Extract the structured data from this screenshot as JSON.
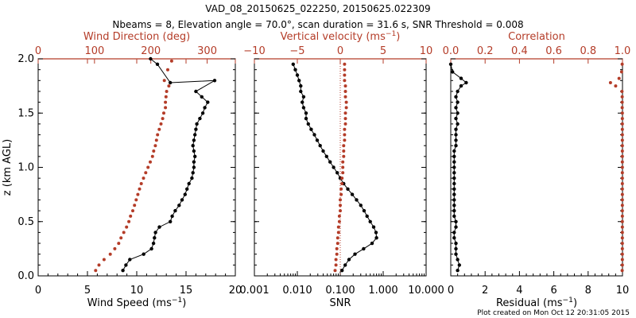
{
  "header": {
    "title": "VAD_08_20150625_022250, 20150625.022309",
    "subtitle": "Nbeams = 8, Elevation angle = 70.0°, scan duration = 31.6 s, SNR Threshold = 0.008"
  },
  "footer": {
    "note": "Plot created on Mon Oct 12 20:31:05 2015"
  },
  "colors": {
    "primary": "#000000",
    "secondary": "#b43c28"
  },
  "chart_data": [
    {
      "type": "line",
      "title": "",
      "xlabel": "Wind Speed (ms⁻¹)",
      "ylabel": "z (km AGL)",
      "xlim": [
        0,
        20
      ],
      "ylim": [
        0,
        2
      ],
      "x_ticks": [
        "0",
        "5",
        "10",
        "15",
        "20"
      ],
      "y_ticks": [
        "0.0",
        "0.5",
        "1.0",
        "1.5",
        "2.0"
      ],
      "top_axis": {
        "label": "Wind Direction (deg)",
        "xlim": [
          0,
          350
        ],
        "ticks": [
          "0",
          "100",
          "200",
          "300"
        ]
      },
      "series": [
        {
          "name": "Wind Speed",
          "axis": "bottom",
          "color": "#000000",
          "x": [
            8.6,
            8.9,
            9.3,
            10.7,
            11.5,
            11.7,
            11.8,
            11.9,
            12.3,
            13.4,
            13.6,
            13.9,
            14.3,
            14.6,
            14.9,
            15.1,
            15.3,
            15.6,
            15.7,
            15.8,
            15.8,
            15.9,
            15.8,
            15.7,
            15.8,
            15.9,
            16.0,
            16.1,
            16.4,
            16.7,
            16.9,
            17.2,
            16.6,
            16.0,
            17.9,
            13.4,
            12.1,
            11.4
          ],
          "y": [
            0.05,
            0.1,
            0.15,
            0.2,
            0.25,
            0.3,
            0.35,
            0.4,
            0.45,
            0.5,
            0.55,
            0.6,
            0.65,
            0.7,
            0.75,
            0.8,
            0.85,
            0.9,
            0.95,
            1.0,
            1.05,
            1.1,
            1.15,
            1.2,
            1.25,
            1.3,
            1.35,
            1.4,
            1.45,
            1.5,
            1.55,
            1.6,
            1.65,
            1.7,
            1.8,
            1.78,
            1.95,
            2.0
          ]
        },
        {
          "name": "Wind Direction",
          "axis": "top",
          "color": "#b43c28",
          "x": [
            102,
            108,
            117,
            128,
            136,
            143,
            147,
            152,
            157,
            161,
            164,
            168,
            171,
            174,
            177,
            180,
            183,
            187,
            191,
            195,
            199,
            203,
            205,
            208,
            210,
            212,
            215,
            218,
            221,
            223,
            226,
            226,
            227,
            228,
            232,
            224,
            230,
            237
          ],
          "y": [
            0.05,
            0.1,
            0.15,
            0.2,
            0.25,
            0.3,
            0.35,
            0.4,
            0.45,
            0.5,
            0.55,
            0.6,
            0.65,
            0.7,
            0.75,
            0.8,
            0.85,
            0.9,
            0.95,
            1.0,
            1.05,
            1.1,
            1.15,
            1.2,
            1.25,
            1.3,
            1.35,
            1.4,
            1.45,
            1.5,
            1.55,
            1.6,
            1.65,
            1.7,
            1.75,
            1.8,
            1.9,
            1.98
          ]
        }
      ]
    },
    {
      "type": "line",
      "title": "",
      "xlabel": "SNR",
      "xscale": "log",
      "xlim": [
        0.001,
        10
      ],
      "ylim": [
        0,
        2
      ],
      "x_ticks": [
        "0.001",
        "0.010",
        "0.100",
        "1.000",
        "10.000"
      ],
      "top_axis": {
        "label": "Vertical velocity (ms⁻¹)",
        "xlim": [
          -10,
          10
        ],
        "ticks": [
          "−10",
          "−5",
          "0",
          "5",
          "10"
        ]
      },
      "series": [
        {
          "name": "SNR",
          "axis": "bottom",
          "color": "#000000",
          "x": [
            0.11,
            0.13,
            0.16,
            0.22,
            0.35,
            0.55,
            0.7,
            0.68,
            0.6,
            0.5,
            0.42,
            0.36,
            0.3,
            0.24,
            0.19,
            0.15,
            0.12,
            0.1,
            0.085,
            0.07,
            0.058,
            0.048,
            0.04,
            0.034,
            0.029,
            0.025,
            0.021,
            0.018,
            0.016,
            0.016,
            0.014,
            0.013,
            0.014,
            0.012,
            0.012,
            0.011,
            0.01,
            0.009,
            0.008
          ],
          "y": [
            0.05,
            0.1,
            0.15,
            0.2,
            0.25,
            0.3,
            0.35,
            0.4,
            0.45,
            0.5,
            0.55,
            0.6,
            0.65,
            0.7,
            0.75,
            0.8,
            0.85,
            0.9,
            0.95,
            1.0,
            1.05,
            1.1,
            1.15,
            1.2,
            1.25,
            1.3,
            1.35,
            1.4,
            1.45,
            1.5,
            1.55,
            1.6,
            1.65,
            1.7,
            1.75,
            1.8,
            1.85,
            1.9,
            1.95
          ]
        },
        {
          "name": "Vertical velocity",
          "axis": "top",
          "color": "#b43c28",
          "x": [
            -0.6,
            -0.5,
            -0.5,
            -0.4,
            -0.4,
            -0.3,
            -0.3,
            -0.2,
            -0.2,
            -0.1,
            -0.1,
            0.0,
            0.0,
            0.0,
            0.1,
            0.1,
            0.2,
            0.2,
            0.3,
            0.3,
            0.3,
            0.4,
            0.4,
            0.4,
            0.5,
            0.5,
            0.5,
            0.6,
            0.6,
            0.6,
            0.7,
            0.7,
            0.6,
            0.6,
            0.6,
            0.5,
            0.5,
            0.5,
            0.5
          ],
          "y": [
            0.05,
            0.1,
            0.15,
            0.2,
            0.25,
            0.3,
            0.35,
            0.4,
            0.45,
            0.5,
            0.55,
            0.6,
            0.65,
            0.7,
            0.75,
            0.8,
            0.85,
            0.9,
            0.95,
            1.0,
            1.05,
            1.1,
            1.15,
            1.2,
            1.25,
            1.3,
            1.35,
            1.4,
            1.45,
            1.5,
            1.55,
            1.6,
            1.65,
            1.7,
            1.75,
            1.8,
            1.85,
            1.9,
            1.95
          ]
        }
      ]
    },
    {
      "type": "line",
      "title": "",
      "xlabel": "Residual (ms⁻¹)",
      "xlim": [
        0,
        10
      ],
      "ylim": [
        0,
        2
      ],
      "x_ticks": [
        "0",
        "2",
        "4",
        "6",
        "8",
        "10"
      ],
      "top_axis": {
        "label": "Correlation",
        "xlim": [
          0,
          1
        ],
        "ticks": [
          "0.0",
          "0.2",
          "0.4",
          "0.6",
          "0.8",
          "1.0"
        ]
      },
      "series": [
        {
          "name": "Residual",
          "axis": "bottom",
          "color": "#000000",
          "x": [
            0.4,
            0.5,
            0.4,
            0.3,
            0.3,
            0.3,
            0.2,
            0.2,
            0.3,
            0.3,
            0.2,
            0.2,
            0.2,
            0.2,
            0.2,
            0.2,
            0.2,
            0.2,
            0.2,
            0.2,
            0.2,
            0.2,
            0.2,
            0.3,
            0.3,
            0.3,
            0.3,
            0.4,
            0.3,
            0.4,
            0.3,
            0.4,
            0.3,
            0.4,
            0.6,
            0.9,
            0.6,
            0.1,
            0.0
          ],
          "y": [
            0.05,
            0.1,
            0.15,
            0.2,
            0.25,
            0.3,
            0.35,
            0.4,
            0.45,
            0.5,
            0.55,
            0.6,
            0.65,
            0.7,
            0.75,
            0.8,
            0.85,
            0.9,
            0.95,
            1.0,
            1.05,
            1.1,
            1.15,
            1.2,
            1.25,
            1.3,
            1.35,
            1.4,
            1.45,
            1.5,
            1.55,
            1.6,
            1.65,
            1.7,
            1.75,
            1.78,
            1.82,
            1.88,
            1.95
          ]
        },
        {
          "name": "Correlation",
          "axis": "top",
          "color": "#b43c28",
          "x": [
            0.998,
            0.999,
            0.999,
            0.999,
            0.999,
            0.999,
            0.999,
            0.999,
            0.999,
            0.999,
            0.999,
            0.999,
            0.999,
            0.999,
            0.999,
            0.999,
            0.999,
            0.999,
            0.999,
            0.999,
            0.999,
            0.999,
            0.999,
            0.999,
            0.999,
            0.999,
            0.999,
            0.999,
            0.999,
            0.999,
            0.998,
            0.998,
            0.998,
            0.997,
            0.96,
            0.93,
            0.98,
            0.995,
            0.998
          ],
          "y": [
            0.05,
            0.1,
            0.15,
            0.2,
            0.25,
            0.3,
            0.35,
            0.4,
            0.45,
            0.5,
            0.55,
            0.6,
            0.65,
            0.7,
            0.75,
            0.8,
            0.85,
            0.9,
            0.95,
            1.0,
            1.05,
            1.1,
            1.15,
            1.2,
            1.25,
            1.3,
            1.35,
            1.4,
            1.45,
            1.5,
            1.55,
            1.6,
            1.65,
            1.7,
            1.75,
            1.78,
            1.82,
            1.88,
            1.95
          ]
        }
      ]
    }
  ]
}
